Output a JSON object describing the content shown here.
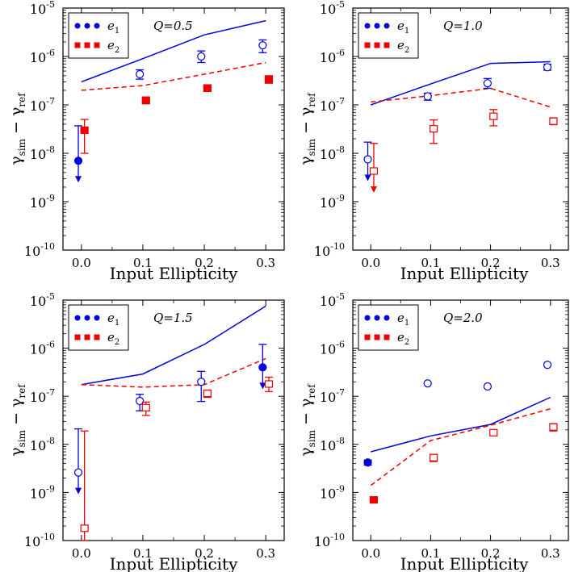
{
  "figure": {
    "y_label": "γ",
    "y_label_sub_sim": "sim",
    "y_label_minus": " − γ",
    "y_label_sub_ref": "ref",
    "x_label": "Input Ellipticity",
    "x_ticks": [
      "0.0",
      "0.1",
      "0.2",
      "0.3"
    ],
    "y_ticks": [
      {
        "mantissa": "10",
        "exp": "-10"
      },
      {
        "mantissa": "10",
        "exp": "-9"
      },
      {
        "mantissa": "10",
        "exp": "-8"
      },
      {
        "mantissa": "10",
        "exp": "-7"
      },
      {
        "mantissa": "10",
        "exp": "-6"
      },
      {
        "mantissa": "10",
        "exp": "-5"
      }
    ],
    "legend": [
      {
        "symbol": "e",
        "sub": "1",
        "color": "#0000dd",
        "marker": "circle"
      },
      {
        "symbol": "e",
        "sub": "2",
        "color": "#ee0000",
        "marker": "square"
      }
    ]
  },
  "chart_data": [
    {
      "type": "scatter",
      "title": "Q=0.5",
      "xlabel": "Input Ellipticity",
      "ylabel": "γsim − γref",
      "xlim": [
        -0.03,
        0.33
      ],
      "ylim": [
        1e-10,
        1e-05
      ],
      "yscale": "log",
      "series": [
        {
          "name": "e1",
          "color": "#0000dd",
          "marker": "circle",
          "x": [
            -0.005,
            0.095,
            0.195,
            0.295
          ],
          "y": [
            7e-09,
            4.3e-07,
            1e-06,
            1.7e-06
          ],
          "lo": [
            null,
            3.4e-07,
            7.5e-07,
            1.2e-06
          ],
          "hi": [
            3.7e-08,
            5.3e-07,
            1.3e-06,
            2.2e-06
          ],
          "upper_limit": [
            true,
            false,
            false,
            false
          ],
          "filled": [
            true,
            false,
            false,
            false
          ]
        },
        {
          "name": "e2",
          "color": "#ee0000",
          "marker": "square",
          "x": [
            0.005,
            0.105,
            0.205,
            0.305
          ],
          "y": [
            3e-08,
            1.25e-07,
            2.2e-07,
            3.4e-07
          ],
          "lo": [
            1e-08,
            1.05e-07,
            1.9e-07,
            2.8e-07
          ],
          "hi": [
            5e-08,
            1.45e-07,
            2.6e-07,
            4e-07
          ],
          "upper_limit": [
            false,
            false,
            false,
            false
          ],
          "filled": [
            true,
            true,
            true,
            true
          ]
        }
      ],
      "lines": [
        {
          "series": "e1",
          "style": "solid",
          "x": [
            0.0,
            0.1,
            0.2,
            0.3
          ],
          "y": [
            3e-07,
            9e-07,
            2.8e-06,
            5.5e-06
          ]
        },
        {
          "series": "e2",
          "style": "dashed",
          "x": [
            0.0,
            0.1,
            0.2,
            0.3
          ],
          "y": [
            2e-07,
            2.5e-07,
            4.3e-07,
            7.5e-07
          ]
        }
      ]
    },
    {
      "type": "scatter",
      "title": "Q=1.0",
      "xlabel": "Input Ellipticity",
      "ylabel": "γsim − γref",
      "xlim": [
        -0.03,
        0.33
      ],
      "ylim": [
        1e-10,
        1e-05
      ],
      "yscale": "log",
      "series": [
        {
          "name": "e1",
          "color": "#0000dd",
          "marker": "circle",
          "x": [
            -0.005,
            0.095,
            0.195,
            0.295
          ],
          "y": [
            7.5e-09,
            1.5e-07,
            2.8e-07,
            6e-07
          ],
          "lo": [
            null,
            1.25e-07,
            2.2e-07,
            5.2e-07
          ],
          "hi": [
            1.7e-08,
            1.75e-07,
            3.5e-07,
            6.9e-07
          ],
          "upper_limit": [
            true,
            false,
            false,
            false
          ],
          "filled": [
            false,
            false,
            false,
            false
          ]
        },
        {
          "name": "e2",
          "color": "#ee0000",
          "marker": "square",
          "x": [
            0.005,
            0.105,
            0.205,
            0.305
          ],
          "y": [
            4.3e-09,
            3.2e-08,
            5.8e-08,
            4.6e-08
          ],
          "lo": [
            null,
            1.6e-08,
            3.7e-08,
            3.9e-08
          ],
          "hi": [
            1.6e-08,
            4.9e-08,
            8e-08,
            5.4e-08
          ],
          "upper_limit": [
            true,
            false,
            false,
            false
          ],
          "filled": [
            false,
            false,
            false,
            false
          ]
        }
      ],
      "lines": [
        {
          "series": "e1",
          "style": "solid",
          "x": [
            0.0,
            0.1,
            0.2,
            0.3
          ],
          "y": [
            1e-07,
            2.7e-07,
            7.2e-07,
            7.8e-07
          ]
        },
        {
          "series": "e2",
          "style": "dashed",
          "x": [
            0.0,
            0.1,
            0.2,
            0.3
          ],
          "y": [
            1.15e-07,
            1.55e-07,
            2.2e-07,
            9e-08
          ]
        }
      ]
    },
    {
      "type": "scatter",
      "title": "Q=1.5",
      "xlabel": "Input Ellipticity",
      "ylabel": "γsim − γref",
      "xlim": [
        -0.03,
        0.33
      ],
      "ylim": [
        1e-10,
        1e-05
      ],
      "yscale": "log",
      "series": [
        {
          "name": "e1",
          "color": "#0000dd",
          "marker": "circle",
          "x": [
            -0.005,
            0.095,
            0.195,
            0.295
          ],
          "y": [
            2.6e-09,
            8e-08,
            2e-07,
            4e-07
          ],
          "lo": [
            null,
            5e-08,
            7.8e-08,
            null
          ],
          "hi": [
            2.1e-08,
            1.1e-07,
            3.3e-07,
            1.2e-06
          ],
          "upper_limit": [
            true,
            false,
            false,
            true
          ],
          "filled": [
            false,
            false,
            false,
            true
          ]
        },
        {
          "name": "e2",
          "color": "#ee0000",
          "marker": "square",
          "x": [
            0.005,
            0.105,
            0.205,
            0.305
          ],
          "y": [
            1.8e-10,
            5.8e-08,
            1.15e-07,
            1.8e-07
          ],
          "lo": [
            1e-10,
            4e-08,
            9.5e-08,
            1.25e-07
          ],
          "hi": [
            1.9e-08,
            7.6e-08,
            1.35e-07,
            2.5e-07
          ],
          "upper_limit": [
            false,
            false,
            false,
            false
          ],
          "filled": [
            false,
            false,
            false,
            false
          ]
        }
      ],
      "lines": [
        {
          "series": "e1",
          "style": "solid",
          "x": [
            0.0,
            0.1,
            0.2,
            0.3
          ],
          "y": [
            1.75e-07,
            2.9e-07,
            1.2e-06,
            7.5e-06
          ]
        },
        {
          "series": "e2",
          "style": "dashed",
          "x": [
            0.0,
            0.1,
            0.2,
            0.3
          ],
          "y": [
            1.75e-07,
            1.55e-07,
            1.75e-07,
            6.1e-07
          ]
        }
      ]
    },
    {
      "type": "scatter",
      "title": "Q=2.0",
      "xlabel": "Input Ellipticity",
      "ylabel": "γsim − γref",
      "xlim": [
        -0.03,
        0.33
      ],
      "ylim": [
        1e-10,
        1e-05
      ],
      "yscale": "log",
      "series": [
        {
          "name": "e1",
          "color": "#0000dd",
          "marker": "circle",
          "x": [
            -0.005,
            0.095,
            0.195,
            0.295
          ],
          "y": [
            4.2e-09,
            1.85e-07,
            1.6e-07,
            4.5e-07
          ],
          "lo": [
            3.7e-09,
            null,
            null,
            null
          ],
          "hi": [
            4.7e-09,
            null,
            null,
            null
          ],
          "upper_limit": [
            false,
            false,
            false,
            false
          ],
          "filled": [
            true,
            false,
            false,
            false
          ]
        },
        {
          "name": "e2",
          "color": "#ee0000",
          "marker": "square",
          "x": [
            0.005,
            0.105,
            0.205,
            0.305
          ],
          "y": [
            7e-10,
            5.3e-09,
            1.75e-08,
            2.3e-08
          ],
          "lo": [
            6.2e-10,
            4.4e-09,
            1.6e-08,
            1.9e-08
          ],
          "hi": [
            7.8e-10,
            6.2e-09,
            1.9e-08,
            2.7e-08
          ],
          "upper_limit": [
            false,
            false,
            false,
            false
          ],
          "filled": [
            true,
            false,
            false,
            false
          ]
        }
      ],
      "lines": [
        {
          "series": "e1",
          "style": "solid",
          "x": [
            0.0,
            0.1,
            0.2,
            0.3
          ],
          "y": [
            7e-09,
            1.5e-08,
            2.6e-08,
            9.5e-08
          ]
        },
        {
          "series": "e2",
          "style": "dashed",
          "x": [
            0.0,
            0.1,
            0.2,
            0.3
          ],
          "y": [
            1.4e-09,
            1.2e-08,
            2.5e-08,
            5.5e-08
          ]
        }
      ]
    }
  ]
}
